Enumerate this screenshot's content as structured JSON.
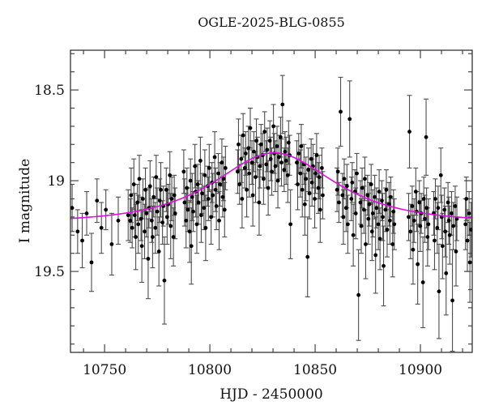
{
  "figure": {
    "title": "OGLE-2025-BLG-0855",
    "xlabel": "HJD - 2450000",
    "ylabel": "I magnitude"
  },
  "chart_data": {
    "type": "scatter",
    "title": "OGLE-2025-BLG-0855",
    "xlabel": "HJD - 2450000",
    "ylabel": "I magnitude",
    "xlim": [
      10733.8,
      10924.6
    ],
    "ylim_mag_bottom_top": [
      19.946,
      18.281
    ],
    "y_axis_inverted": true,
    "grid": false,
    "x_ticks": [
      {
        "v": 10750,
        "label": "10750"
      },
      {
        "v": 10800,
        "label": "10800"
      },
      {
        "v": 10850,
        "label": "10850"
      },
      {
        "v": 10900,
        "label": "10900"
      }
    ],
    "x_minor_step": 10,
    "y_ticks": [
      {
        "v": 18.5,
        "label": "18.5"
      },
      {
        "v": 19.0,
        "label": "19"
      },
      {
        "v": 19.5,
        "label": "19.5"
      }
    ],
    "y_minor_step": 0.1,
    "colors": {
      "background": "#ffffff",
      "frame": "#222222",
      "ticks": "#444444",
      "points": "#000000",
      "error_bars": "#4d4d4d",
      "model_curve": "#e10ce1",
      "text": "#111111"
    },
    "model": {
      "type": "paczynski_microlensing",
      "t0": 10830.5,
      "tE": 36,
      "u0": 0.9,
      "I0": 19.23
    },
    "points_format": [
      "hjd_minus_2450000",
      "i_magnitude",
      "error"
    ],
    "points": [
      [
        10734.6,
        19.15,
        0.13
      ],
      [
        10737.2,
        19.28,
        0.12
      ],
      [
        10739.4,
        19.33,
        0.15
      ],
      [
        10741.5,
        19.18,
        0.12
      ],
      [
        10743.8,
        19.45,
        0.16
      ],
      [
        10746.4,
        19.11,
        0.12
      ],
      [
        10748.5,
        19.26,
        0.14
      ],
      [
        10750.6,
        19.16,
        0.11
      ],
      [
        10753.4,
        19.35,
        0.17
      ],
      [
        10756.5,
        19.22,
        0.13
      ],
      [
        10761.2,
        19.19,
        0.14
      ],
      [
        10762.2,
        19.22,
        0.12
      ],
      [
        10762.6,
        19.08,
        0.15
      ],
      [
        10763.1,
        19.26,
        0.11
      ],
      [
        10763.9,
        19.02,
        0.14
      ],
      [
        10764.3,
        19.19,
        0.12
      ],
      [
        10764.8,
        19.31,
        0.18
      ],
      [
        10765.6,
        19.12,
        0.1
      ],
      [
        10766.0,
        19.24,
        0.16
      ],
      [
        10766.5,
        18.99,
        0.13
      ],
      [
        10767.3,
        19.21,
        0.12
      ],
      [
        10767.7,
        19.36,
        0.2
      ],
      [
        10768.2,
        19.1,
        0.11
      ],
      [
        10769.0,
        19.28,
        0.15
      ],
      [
        10769.4,
        19.05,
        0.12
      ],
      [
        10769.9,
        19.18,
        0.13
      ],
      [
        10770.7,
        19.43,
        0.22
      ],
      [
        10771.1,
        19.15,
        0.11
      ],
      [
        10771.6,
        19.03,
        0.14
      ],
      [
        10772.4,
        19.22,
        0.12
      ],
      [
        10772.8,
        19.31,
        0.17
      ],
      [
        10773.3,
        19.09,
        0.11
      ],
      [
        10774.1,
        19.26,
        0.14
      ],
      [
        10774.5,
        18.98,
        0.12
      ],
      [
        10775.0,
        19.17,
        0.13
      ],
      [
        10775.8,
        19.39,
        0.19
      ],
      [
        10776.2,
        19.11,
        0.12
      ],
      [
        10776.7,
        19.05,
        0.15
      ],
      [
        10777.5,
        19.23,
        0.12
      ],
      [
        10777.9,
        19.14,
        0.11
      ],
      [
        10778.4,
        19.55,
        0.24
      ],
      [
        10779.3,
        19.05,
        0.12
      ],
      [
        10779.7,
        19.2,
        0.15
      ],
      [
        10780.2,
        19.13,
        0.11
      ],
      [
        10781.0,
        18.97,
        0.13
      ],
      [
        10781.4,
        19.25,
        0.18
      ],
      [
        10781.9,
        19.1,
        0.12
      ],
      [
        10782.7,
        19.31,
        0.16
      ],
      [
        10783.1,
        19.08,
        0.11
      ],
      [
        10783.5,
        19.18,
        0.14
      ],
      [
        10787.6,
        18.95,
        0.12
      ],
      [
        10788.0,
        19.12,
        0.13
      ],
      [
        10788.7,
        19.22,
        0.15
      ],
      [
        10789.1,
        19.04,
        0.11
      ],
      [
        10789.5,
        19.16,
        0.12
      ],
      [
        10790.4,
        19.28,
        0.17
      ],
      [
        10790.8,
        19.0,
        0.12
      ],
      [
        10791.2,
        19.36,
        0.21
      ],
      [
        10791.6,
        19.09,
        0.13
      ],
      [
        10792.1,
        19.17,
        0.11
      ],
      [
        10792.9,
        18.92,
        0.12
      ],
      [
        10793.3,
        19.06,
        0.14
      ],
      [
        10793.8,
        19.24,
        0.16
      ],
      [
        10794.2,
        19.02,
        0.11
      ],
      [
        10794.6,
        19.12,
        0.12
      ],
      [
        10795.5,
        18.89,
        0.13
      ],
      [
        10795.9,
        19.19,
        0.15
      ],
      [
        10796.3,
        19.07,
        0.11
      ],
      [
        10797.2,
        19.15,
        0.12
      ],
      [
        10797.6,
        18.97,
        0.14
      ],
      [
        10798.0,
        19.26,
        0.18
      ],
      [
        10798.9,
        19.03,
        0.11
      ],
      [
        10799.3,
        19.1,
        0.12
      ],
      [
        10799.7,
        18.93,
        0.13
      ],
      [
        10800.6,
        19.2,
        0.15
      ],
      [
        10801.0,
        19.01,
        0.11
      ],
      [
        10801.4,
        19.08,
        0.12
      ],
      [
        10802.3,
        18.87,
        0.14
      ],
      [
        10802.7,
        19.05,
        0.12
      ],
      [
        10803.1,
        19.14,
        0.13
      ],
      [
        10804.0,
        18.96,
        0.11
      ],
      [
        10804.4,
        19.22,
        0.16
      ],
      [
        10804.8,
        19.02,
        0.12
      ],
      [
        10805.7,
        18.9,
        0.13
      ],
      [
        10806.1,
        19.09,
        0.11
      ],
      [
        10806.5,
        18.99,
        0.12
      ],
      [
        10807.0,
        19.16,
        0.15
      ],
      [
        10807.4,
        18.93,
        0.12
      ],
      [
        10813.2,
        18.95,
        0.12
      ],
      [
        10813.6,
        18.8,
        0.14
      ],
      [
        10814.1,
        19.02,
        0.11
      ],
      [
        10814.9,
        18.88,
        0.13
      ],
      [
        10815.3,
        19.1,
        0.16
      ],
      [
        10815.8,
        18.75,
        0.12
      ],
      [
        10816.6,
        18.93,
        0.11
      ],
      [
        10817.0,
        18.85,
        0.12
      ],
      [
        10817.5,
        19.05,
        0.15
      ],
      [
        10818.3,
        18.82,
        0.12
      ],
      [
        10818.7,
        18.96,
        0.13
      ],
      [
        10819.2,
        18.71,
        0.11
      ],
      [
        10820.0,
        18.9,
        0.12
      ],
      [
        10820.4,
        19.08,
        0.17
      ],
      [
        10820.9,
        18.84,
        0.11
      ],
      [
        10821.7,
        18.98,
        0.14
      ],
      [
        10822.1,
        18.78,
        0.12
      ],
      [
        10822.6,
        18.87,
        0.11
      ],
      [
        10823.4,
        19.12,
        0.18
      ],
      [
        10823.8,
        18.92,
        0.12
      ],
      [
        10824.3,
        18.8,
        0.11
      ],
      [
        10825.1,
        18.86,
        0.12
      ],
      [
        10825.5,
        18.99,
        0.14
      ],
      [
        10826.0,
        18.73,
        0.11
      ],
      [
        10826.8,
        18.91,
        0.13
      ],
      [
        10827.2,
        18.83,
        0.12
      ],
      [
        10827.7,
        19.04,
        0.15
      ],
      [
        10828.5,
        18.78,
        0.11
      ],
      [
        10828.9,
        18.88,
        0.12
      ],
      [
        10829.4,
        18.95,
        0.13
      ],
      [
        10830.2,
        18.7,
        0.12
      ],
      [
        10830.6,
        18.85,
        0.11
      ],
      [
        10831.1,
        18.92,
        0.14
      ],
      [
        10831.9,
        18.81,
        0.11
      ],
      [
        10832.3,
        19.0,
        0.15
      ],
      [
        10832.8,
        18.87,
        0.12
      ],
      [
        10833.6,
        18.76,
        0.11
      ],
      [
        10834.0,
        18.9,
        0.13
      ],
      [
        10834.5,
        18.58,
        0.16
      ],
      [
        10835.3,
        18.94,
        0.12
      ],
      [
        10835.7,
        18.84,
        0.11
      ],
      [
        10836.2,
        18.89,
        0.13
      ],
      [
        10837.0,
        18.97,
        0.15
      ],
      [
        10837.4,
        18.79,
        0.12
      ],
      [
        10837.9,
        18.86,
        0.11
      ],
      [
        10838.3,
        19.24,
        0.19
      ],
      [
        10841.3,
        18.9,
        0.12
      ],
      [
        10841.7,
        19.02,
        0.14
      ],
      [
        10842.2,
        18.85,
        0.11
      ],
      [
        10843.0,
        18.96,
        0.13
      ],
      [
        10843.4,
        18.81,
        0.12
      ],
      [
        10843.9,
        19.05,
        0.15
      ],
      [
        10844.7,
        18.91,
        0.11
      ],
      [
        10845.1,
        19.13,
        0.17
      ],
      [
        10845.6,
        18.99,
        0.12
      ],
      [
        10846.4,
        19.42,
        0.22
      ],
      [
        10846.8,
        18.94,
        0.12
      ],
      [
        10847.3,
        19.07,
        0.14
      ],
      [
        10848.1,
        18.88,
        0.11
      ],
      [
        10848.5,
        19.01,
        0.13
      ],
      [
        10849.0,
        18.92,
        0.12
      ],
      [
        10849.8,
        19.1,
        0.16
      ],
      [
        10850.2,
        18.96,
        0.11
      ],
      [
        10850.7,
        18.86,
        0.12
      ],
      [
        10851.5,
        19.04,
        0.14
      ],
      [
        10851.9,
        18.98,
        0.12
      ],
      [
        10852.4,
        19.16,
        0.18
      ],
      [
        10853.2,
        18.93,
        0.11
      ],
      [
        10853.6,
        19.08,
        0.13
      ],
      [
        10860.4,
        19.05,
        0.12
      ],
      [
        10860.8,
        18.95,
        0.13
      ],
      [
        10861.3,
        19.12,
        0.11
      ],
      [
        10862.1,
        18.62,
        0.19
      ],
      [
        10863.0,
        19.08,
        0.12
      ],
      [
        10863.4,
        19.2,
        0.15
      ],
      [
        10863.8,
        18.99,
        0.11
      ],
      [
        10864.7,
        19.15,
        0.13
      ],
      [
        10865.1,
        19.03,
        0.12
      ],
      [
        10865.5,
        19.24,
        0.16
      ],
      [
        10866.4,
        18.66,
        0.21
      ],
      [
        10867.2,
        19.1,
        0.12
      ],
      [
        10867.6,
        19.01,
        0.11
      ],
      [
        10868.1,
        19.3,
        0.17
      ],
      [
        10868.9,
        19.06,
        0.12
      ],
      [
        10869.3,
        19.18,
        0.14
      ],
      [
        10869.8,
        18.96,
        0.11
      ],
      [
        10870.6,
        19.63,
        0.25
      ],
      [
        10871.5,
        19.12,
        0.12
      ],
      [
        10871.9,
        19.25,
        0.15
      ],
      [
        10872.3,
        19.04,
        0.11
      ],
      [
        10873.2,
        19.16,
        0.13
      ],
      [
        10873.6,
        18.99,
        0.12
      ],
      [
        10874.0,
        19.35,
        0.19
      ],
      [
        10874.9,
        19.08,
        0.11
      ],
      [
        10875.3,
        19.21,
        0.14
      ],
      [
        10875.7,
        19.13,
        0.12
      ],
      [
        10876.6,
        19.02,
        0.11
      ],
      [
        10877.0,
        19.28,
        0.16
      ],
      [
        10877.4,
        19.18,
        0.13
      ],
      [
        10878.3,
        19.09,
        0.12
      ],
      [
        10878.7,
        19.41,
        0.21
      ],
      [
        10879.1,
        19.15,
        0.11
      ],
      [
        10880.0,
        19.24,
        0.14
      ],
      [
        10880.4,
        19.06,
        0.12
      ],
      [
        10880.8,
        19.32,
        0.17
      ],
      [
        10881.7,
        19.11,
        0.11
      ],
      [
        10882.1,
        19.2,
        0.13
      ],
      [
        10882.5,
        19.47,
        0.22
      ],
      [
        10883.4,
        19.16,
        0.12
      ],
      [
        10883.8,
        19.05,
        0.11
      ],
      [
        10884.2,
        19.27,
        0.15
      ],
      [
        10885.1,
        19.13,
        0.12
      ],
      [
        10885.5,
        19.22,
        0.13
      ],
      [
        10885.9,
        19.09,
        0.11
      ],
      [
        10886.8,
        19.35,
        0.18
      ],
      [
        10887.2,
        19.17,
        0.12
      ],
      [
        10887.6,
        19.24,
        0.14
      ],
      [
        10894.4,
        19.2,
        0.13
      ],
      [
        10894.8,
        18.73,
        0.2
      ],
      [
        10895.3,
        19.28,
        0.15
      ],
      [
        10896.1,
        19.14,
        0.11
      ],
      [
        10896.5,
        19.38,
        0.19
      ],
      [
        10897.0,
        19.22,
        0.12
      ],
      [
        10897.8,
        19.06,
        0.13
      ],
      [
        10898.2,
        19.17,
        0.11
      ],
      [
        10898.7,
        19.46,
        0.22
      ],
      [
        10899.5,
        19.12,
        0.12
      ],
      [
        10899.9,
        19.25,
        0.14
      ],
      [
        10900.4,
        19.18,
        0.11
      ],
      [
        10901.2,
        19.56,
        0.25
      ],
      [
        10901.6,
        19.1,
        0.12
      ],
      [
        10902.1,
        19.21,
        0.13
      ],
      [
        10902.7,
        18.76,
        0.21
      ],
      [
        10902.9,
        19.15,
        0.11
      ],
      [
        10903.4,
        19.31,
        0.16
      ],
      [
        10903.8,
        19.24,
        0.14
      ],
      [
        10906.3,
        19.18,
        0.12
      ],
      [
        10906.7,
        19.33,
        0.16
      ],
      [
        10907.1,
        19.1,
        0.11
      ],
      [
        10908.0,
        19.26,
        0.14
      ],
      [
        10908.4,
        19.15,
        0.12
      ],
      [
        10908.8,
        19.61,
        0.26
      ],
      [
        10909.7,
        18.97,
        0.15
      ],
      [
        10910.1,
        19.2,
        0.12
      ],
      [
        10910.5,
        19.36,
        0.18
      ],
      [
        10911.4,
        19.16,
        0.12
      ],
      [
        10911.8,
        19.28,
        0.14
      ],
      [
        10912.2,
        19.51,
        0.23
      ],
      [
        10913.1,
        19.12,
        0.11
      ],
      [
        10913.5,
        19.22,
        0.13
      ],
      [
        10913.9,
        19.3,
        0.16
      ],
      [
        10914.8,
        19.18,
        0.12
      ],
      [
        10915.2,
        19.66,
        0.28
      ],
      [
        10915.6,
        19.25,
        0.13
      ],
      [
        10916.5,
        19.14,
        0.11
      ],
      [
        10916.9,
        19.39,
        0.19
      ],
      [
        10917.3,
        19.21,
        0.12
      ],
      [
        10921.4,
        19.24,
        0.14
      ],
      [
        10921.8,
        19.1,
        0.12
      ],
      [
        10922.3,
        19.33,
        0.17
      ],
      [
        10923.1,
        19.18,
        0.12
      ],
      [
        10923.5,
        19.45,
        0.22
      ],
      [
        10924.1,
        19.27,
        0.15
      ]
    ]
  }
}
